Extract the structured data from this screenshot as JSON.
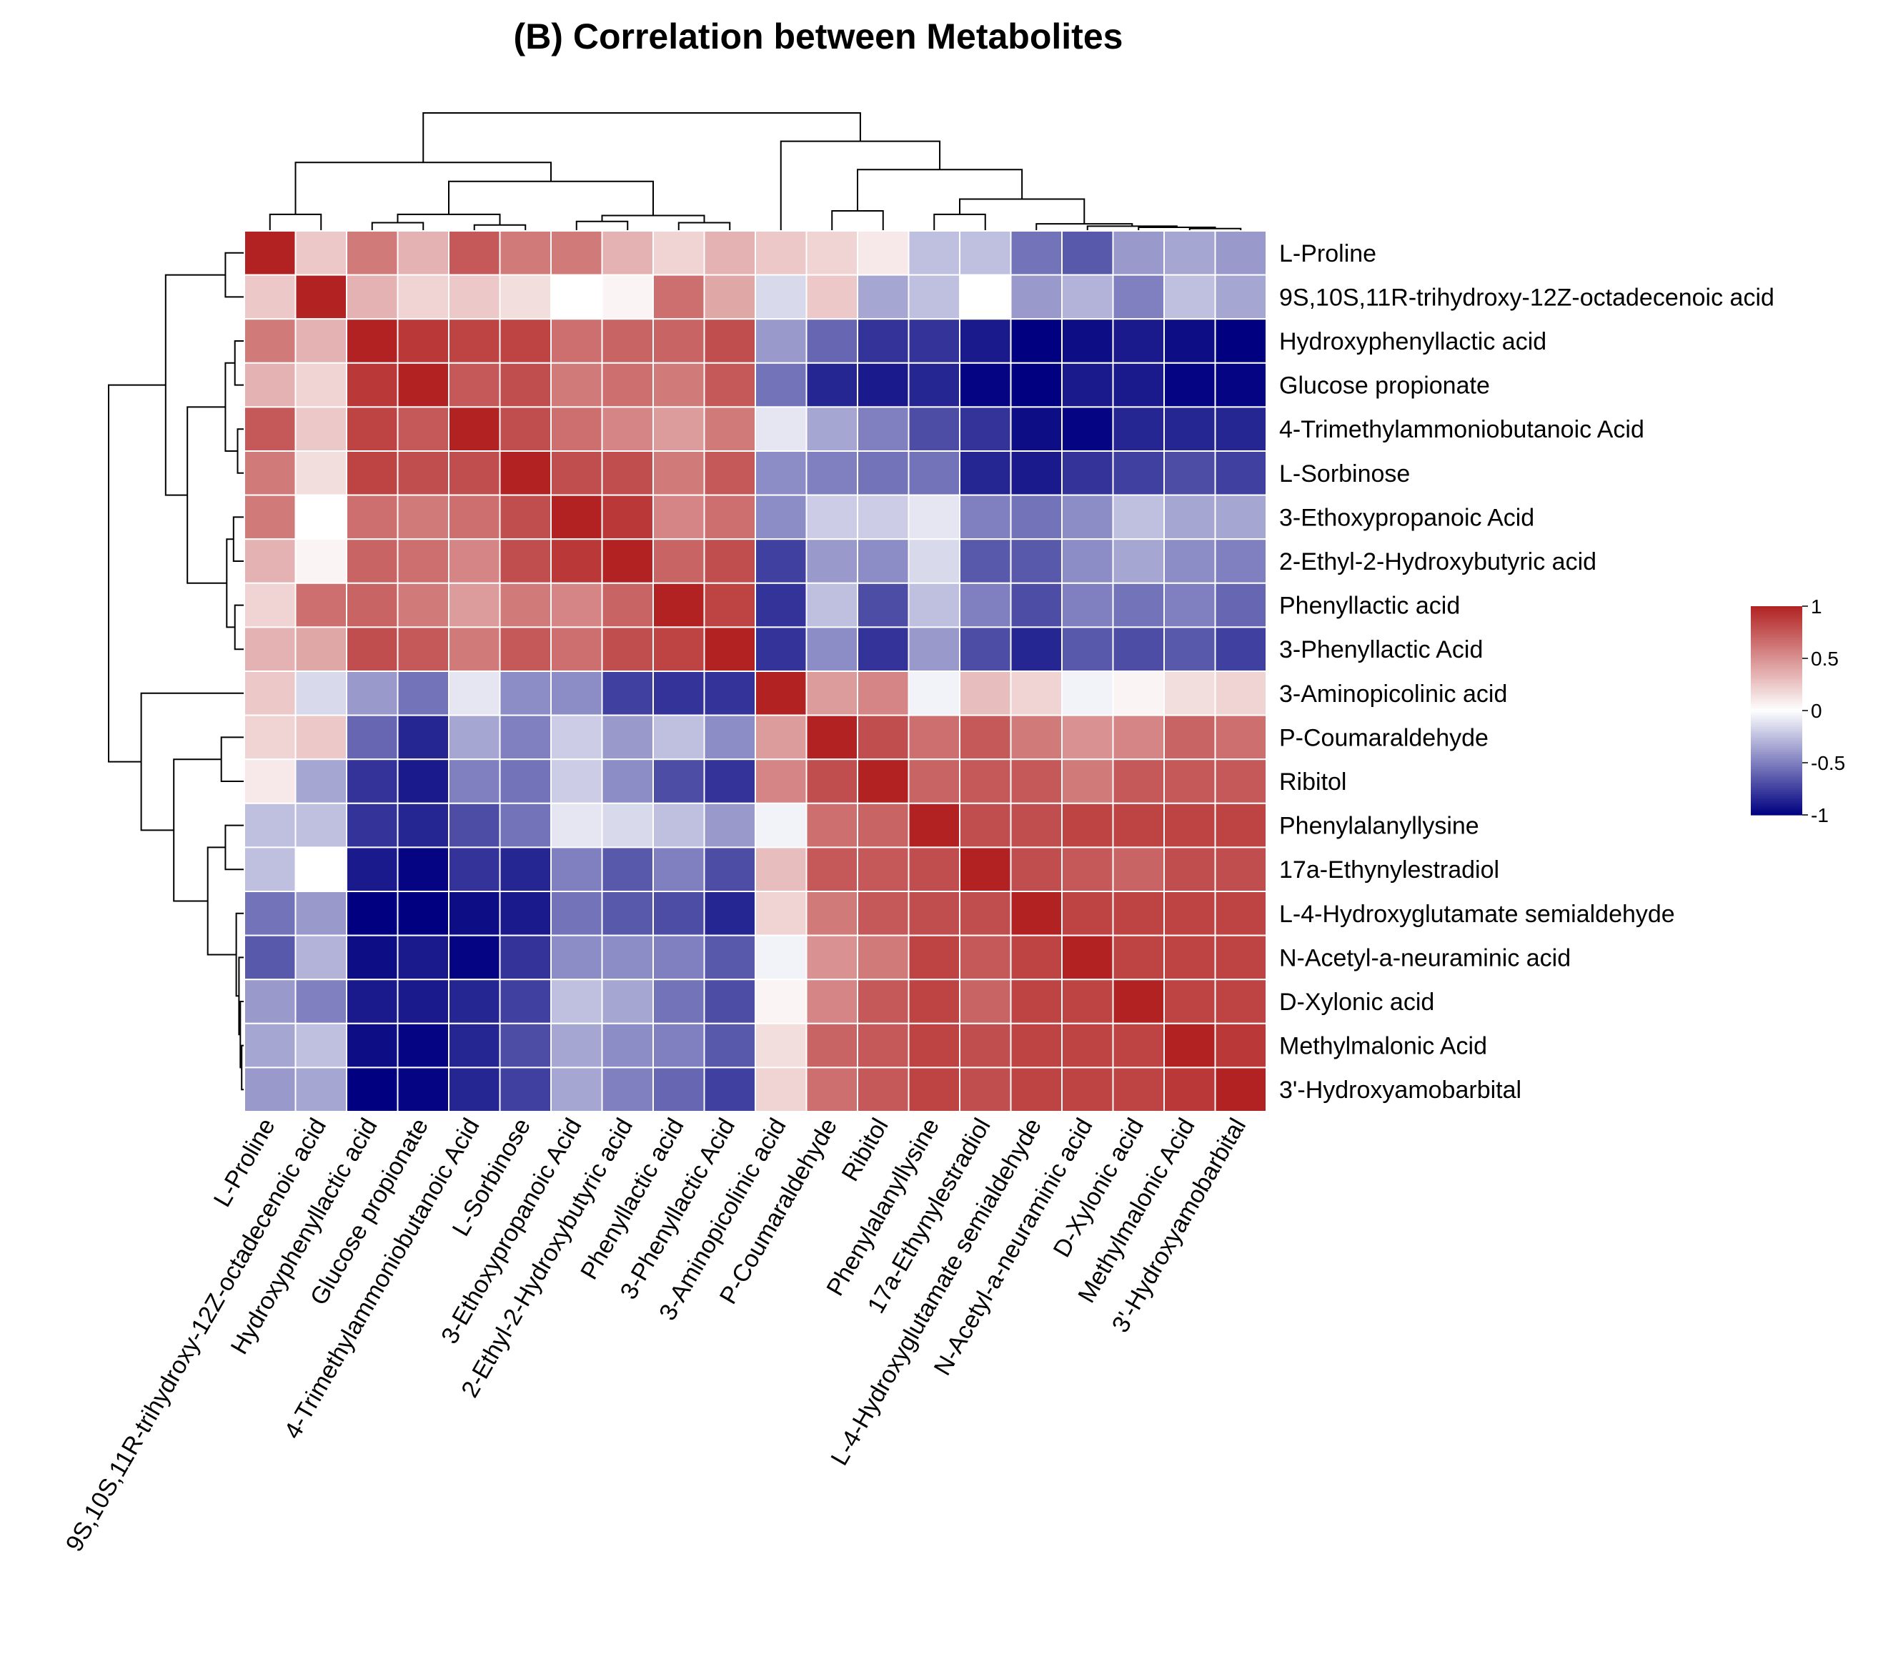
{
  "chart_data": {
    "type": "heatmap",
    "title": "(B) Correlation between Metabolites",
    "labels": [
      "L-Proline",
      "9S,10S,11R-trihydroxy-12Z-octadecenoic acid",
      "Hydroxyphenyllactic acid",
      "Glucose propionate",
      "4-Trimethylammoniobutanoic Acid",
      "L-Sorbinose",
      "3-Ethoxypropanoic Acid",
      "2-Ethyl-2-Hydroxybutyric acid",
      "Phenyllactic acid",
      "3-Phenyllactic Acid",
      "3-Aminopicolinic acid",
      "P-Coumaraldehyde",
      "Ribitol",
      "Phenylalanyllysine",
      "17a-Ethynylestradiol",
      "L-4-Hydroxyglutamate semialdehyde",
      "N-Acetyl-a-neuraminic acid",
      "D-Xylonic acid",
      "Methylmalonic Acid",
      "3'-Hydroxyamobarbital"
    ],
    "matrix": [
      [
        1.0,
        0.25,
        0.6,
        0.35,
        0.75,
        0.6,
        0.6,
        0.35,
        0.2,
        0.35,
        0.25,
        0.2,
        0.1,
        -0.25,
        -0.25,
        -0.55,
        -0.65,
        -0.4,
        -0.35,
        -0.4
      ],
      [
        0.25,
        1.0,
        0.35,
        0.2,
        0.25,
        0.15,
        0.0,
        0.05,
        0.65,
        0.4,
        -0.15,
        0.25,
        -0.35,
        -0.25,
        0.0,
        -0.4,
        -0.3,
        -0.5,
        -0.25,
        -0.35
      ],
      [
        0.6,
        0.35,
        1.0,
        0.9,
        0.85,
        0.85,
        0.65,
        0.7,
        0.7,
        0.8,
        -0.4,
        -0.6,
        -0.8,
        -0.8,
        -0.9,
        -1.0,
        -0.95,
        -0.9,
        -0.95,
        -1.0
      ],
      [
        0.35,
        0.2,
        0.9,
        1.0,
        0.75,
        0.8,
        0.6,
        0.65,
        0.6,
        0.75,
        -0.55,
        -0.85,
        -0.9,
        -0.85,
        -0.98,
        -1.0,
        -0.9,
        -0.9,
        -0.98,
        -0.98
      ],
      [
        0.75,
        0.25,
        0.85,
        0.75,
        1.0,
        0.8,
        0.65,
        0.55,
        0.45,
        0.6,
        -0.1,
        -0.35,
        -0.5,
        -0.7,
        -0.8,
        -0.95,
        -0.98,
        -0.85,
        -0.85,
        -0.85
      ],
      [
        0.6,
        0.15,
        0.85,
        0.8,
        0.8,
        1.0,
        0.8,
        0.8,
        0.6,
        0.75,
        -0.45,
        -0.5,
        -0.55,
        -0.55,
        -0.85,
        -0.9,
        -0.8,
        -0.75,
        -0.7,
        -0.75
      ],
      [
        0.6,
        0.0,
        0.65,
        0.6,
        0.65,
        0.8,
        1.0,
        0.9,
        0.55,
        0.65,
        -0.45,
        -0.2,
        -0.2,
        -0.1,
        -0.5,
        -0.55,
        -0.45,
        -0.25,
        -0.35,
        -0.35
      ],
      [
        0.35,
        0.05,
        0.7,
        0.65,
        0.55,
        0.8,
        0.9,
        1.0,
        0.7,
        0.8,
        -0.75,
        -0.4,
        -0.45,
        -0.15,
        -0.65,
        -0.65,
        -0.45,
        -0.35,
        -0.45,
        -0.5
      ],
      [
        0.2,
        0.65,
        0.7,
        0.6,
        0.45,
        0.6,
        0.55,
        0.7,
        1.0,
        0.85,
        -0.8,
        -0.25,
        -0.7,
        -0.25,
        -0.5,
        -0.7,
        -0.5,
        -0.55,
        -0.5,
        -0.6
      ],
      [
        0.35,
        0.4,
        0.8,
        0.75,
        0.6,
        0.75,
        0.65,
        0.8,
        0.85,
        1.0,
        -0.8,
        -0.45,
        -0.8,
        -0.4,
        -0.7,
        -0.85,
        -0.65,
        -0.7,
        -0.65,
        -0.75
      ],
      [
        0.25,
        -0.15,
        -0.4,
        -0.55,
        -0.1,
        -0.45,
        -0.45,
        -0.75,
        -0.8,
        -0.8,
        1.0,
        0.45,
        0.55,
        -0.05,
        0.3,
        0.2,
        -0.05,
        0.05,
        0.15,
        0.2
      ],
      [
        0.2,
        0.25,
        -0.6,
        -0.85,
        -0.35,
        -0.5,
        -0.2,
        -0.4,
        -0.25,
        -0.45,
        0.45,
        1.0,
        0.8,
        0.65,
        0.75,
        0.6,
        0.5,
        0.55,
        0.7,
        0.65
      ],
      [
        0.1,
        -0.35,
        -0.8,
        -0.9,
        -0.5,
        -0.55,
        -0.2,
        -0.45,
        -0.7,
        -0.8,
        0.55,
        0.8,
        1.0,
        0.7,
        0.75,
        0.75,
        0.6,
        0.75,
        0.75,
        0.75
      ],
      [
        -0.25,
        -0.25,
        -0.8,
        -0.85,
        -0.7,
        -0.55,
        -0.1,
        -0.15,
        -0.25,
        -0.4,
        -0.05,
        0.65,
        0.7,
        1.0,
        0.8,
        0.8,
        0.85,
        0.85,
        0.85,
        0.85
      ],
      [
        -0.25,
        0.0,
        -0.9,
        -0.98,
        -0.8,
        -0.85,
        -0.5,
        -0.65,
        -0.5,
        -0.7,
        0.3,
        0.75,
        0.75,
        0.8,
        1.0,
        0.8,
        0.75,
        0.7,
        0.8,
        0.8
      ],
      [
        -0.55,
        -0.4,
        -1.0,
        -1.0,
        -0.95,
        -0.9,
        -0.55,
        -0.65,
        -0.7,
        -0.85,
        0.2,
        0.6,
        0.75,
        0.8,
        0.8,
        1.0,
        0.85,
        0.85,
        0.85,
        0.85
      ],
      [
        -0.65,
        -0.3,
        -0.95,
        -0.9,
        -0.98,
        -0.8,
        -0.45,
        -0.45,
        -0.5,
        -0.65,
        -0.05,
        0.5,
        0.6,
        0.85,
        0.75,
        0.85,
        1.0,
        0.85,
        0.85,
        0.85
      ],
      [
        -0.4,
        -0.5,
        -0.9,
        -0.9,
        -0.85,
        -0.75,
        -0.25,
        -0.35,
        -0.55,
        -0.7,
        0.05,
        0.55,
        0.75,
        0.85,
        0.7,
        0.85,
        0.85,
        1.0,
        0.85,
        0.85
      ],
      [
        -0.35,
        -0.25,
        -0.95,
        -0.98,
        -0.85,
        -0.7,
        -0.35,
        -0.45,
        -0.5,
        -0.65,
        0.15,
        0.7,
        0.75,
        0.85,
        0.8,
        0.85,
        0.85,
        0.85,
        1.0,
        0.9
      ],
      [
        -0.4,
        -0.35,
        -1.0,
        -0.98,
        -0.85,
        -0.75,
        -0.35,
        -0.5,
        -0.6,
        -0.75,
        0.2,
        0.65,
        0.75,
        0.85,
        0.8,
        0.85,
        0.85,
        0.85,
        0.9,
        1.0
      ]
    ],
    "color_scale": {
      "min": -1,
      "max": 1,
      "low_color": "#000080",
      "mid_color": "#ffffff",
      "high_color": "#b22222"
    },
    "legend_ticks": [
      {
        "value": 1,
        "label": "1"
      },
      {
        "value": 0.5,
        "label": "0.5"
      },
      {
        "value": 0,
        "label": "0"
      },
      {
        "value": -0.5,
        "label": "-0.5"
      },
      {
        "value": -1,
        "label": "-1"
      }
    ],
    "legend_position": "right",
    "dendrogram": {
      "top": true,
      "left": true
    }
  }
}
